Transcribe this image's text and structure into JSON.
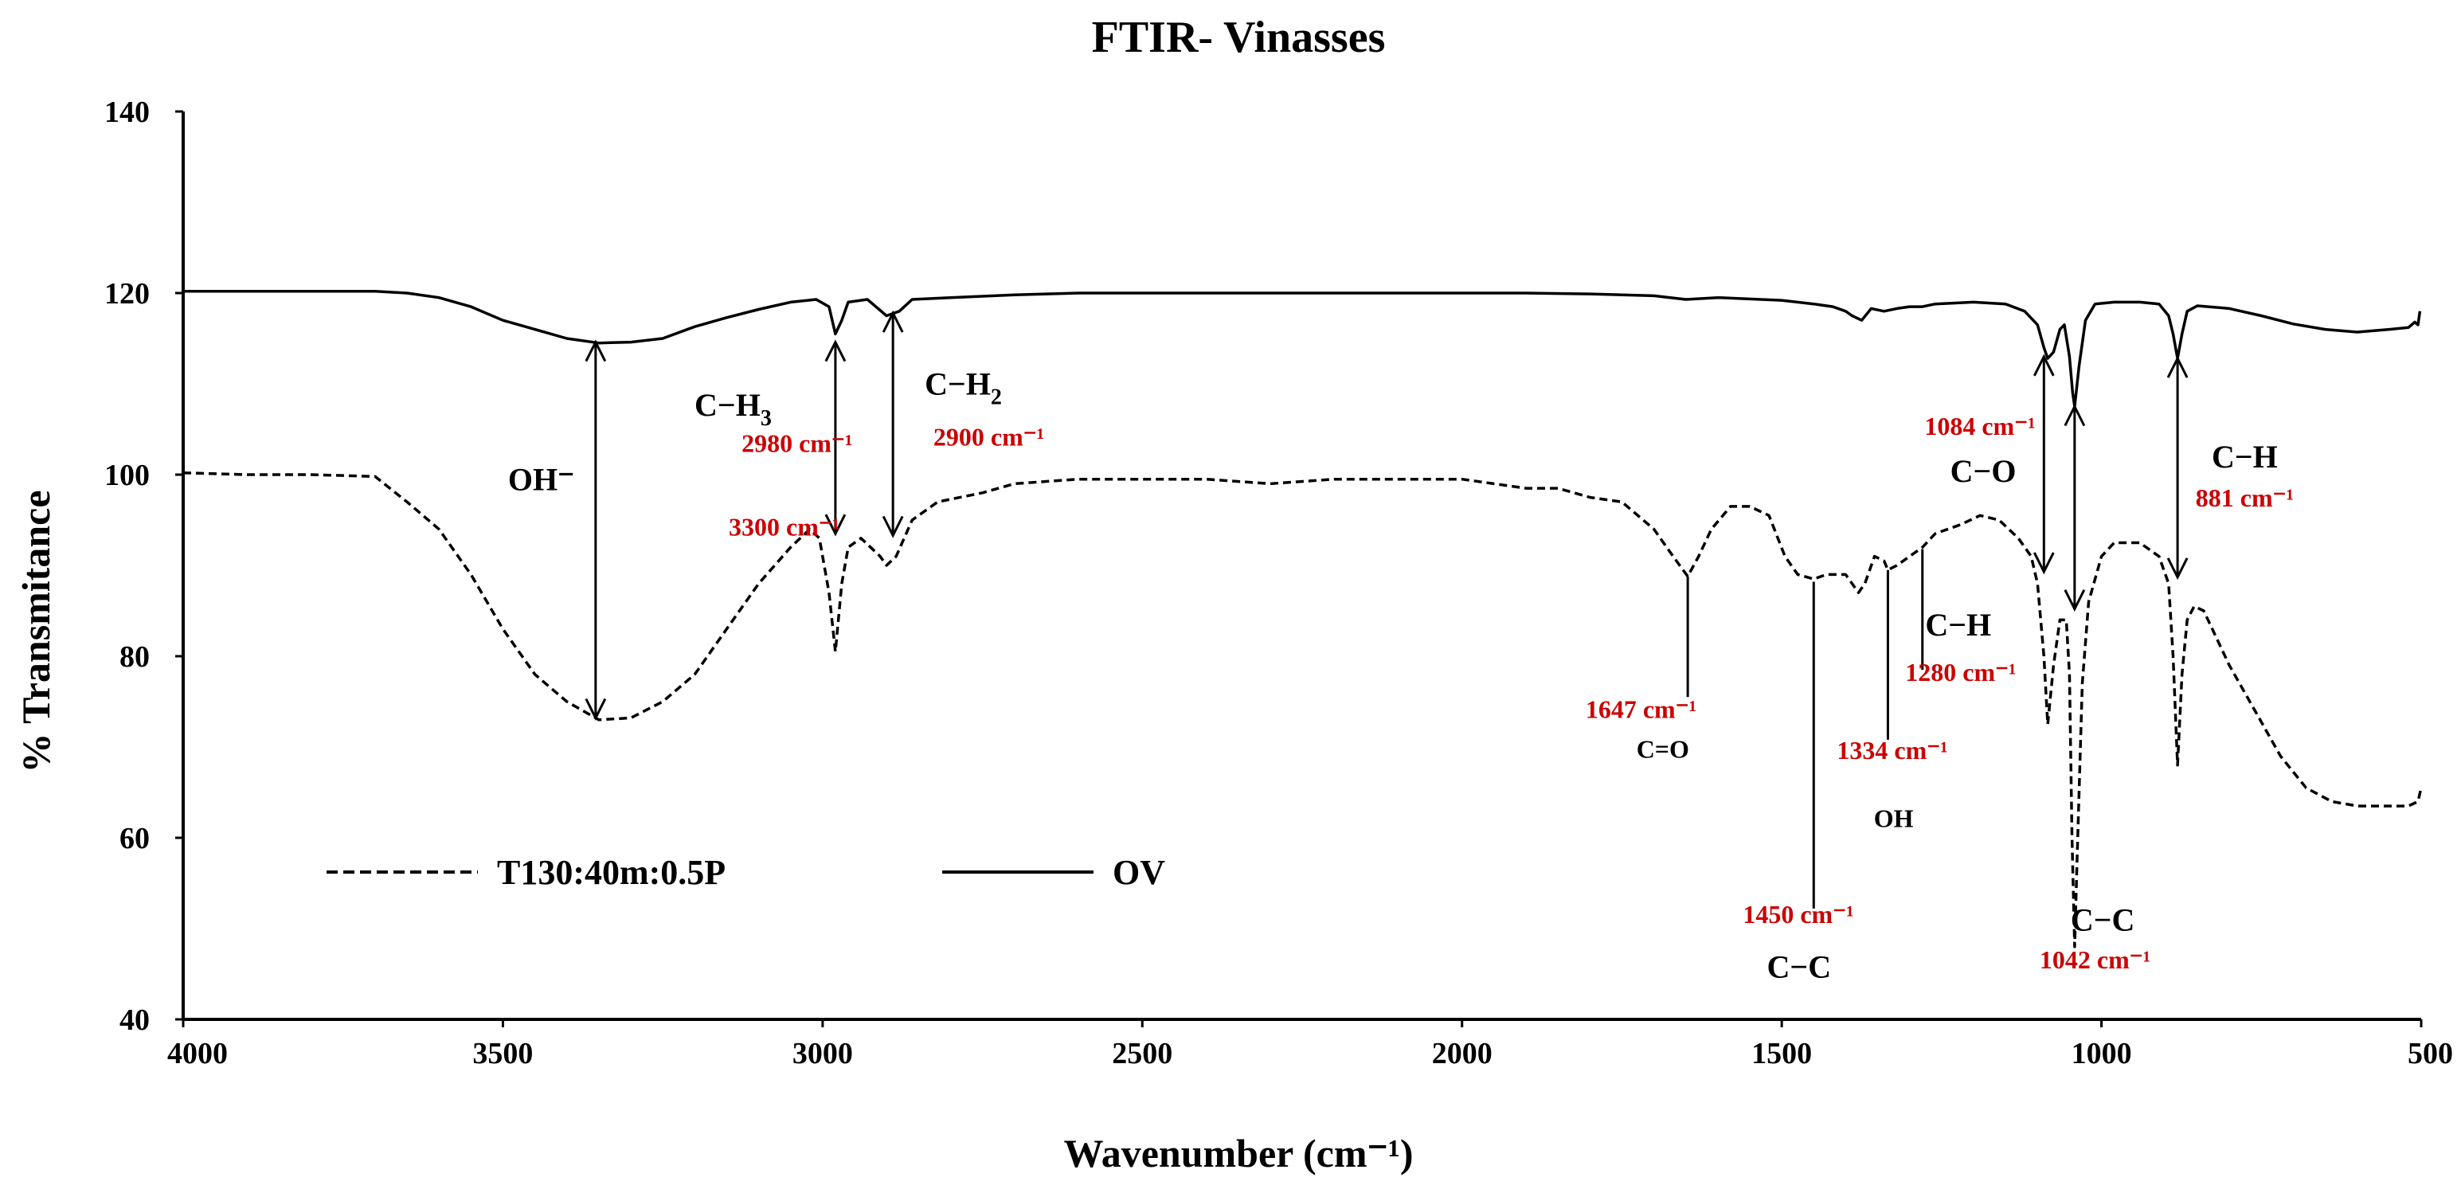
{
  "chart_data": {
    "type": "line",
    "title": "FTIR- Vinasses",
    "xlabel": "Wavenumber (cm⁻¹)",
    "ylabel": "% Transmitance",
    "xlim": [
      4000,
      500
    ],
    "ylim": [
      40,
      140
    ],
    "x_ticks": [
      "4000",
      "3500",
      "3000",
      "2500",
      "2000",
      "1500",
      "1000",
      "500"
    ],
    "y_ticks": [
      "40",
      "60",
      "80",
      "100",
      "120",
      "140"
    ],
    "x_reversed": true,
    "grid": false,
    "legend_position": "bottom-left",
    "series": [
      {
        "name": "T130:40m:0.5P",
        "style": "dashed",
        "color": "#000000",
        "points": [
          [
            4000,
            100.2
          ],
          [
            3900,
            100
          ],
          [
            3800,
            100
          ],
          [
            3700,
            99.8
          ],
          [
            3650,
            97
          ],
          [
            3600,
            94
          ],
          [
            3550,
            89
          ],
          [
            3500,
            83
          ],
          [
            3450,
            78
          ],
          [
            3400,
            75
          ],
          [
            3350,
            73
          ],
          [
            3300,
            73.2
          ],
          [
            3250,
            75
          ],
          [
            3200,
            78
          ],
          [
            3150,
            83
          ],
          [
            3100,
            88
          ],
          [
            3050,
            92
          ],
          [
            3020,
            94
          ],
          [
            3005,
            93
          ],
          [
            2990,
            87
          ],
          [
            2980,
            80.5
          ],
          [
            2970,
            88
          ],
          [
            2960,
            92
          ],
          [
            2940,
            93
          ],
          [
            2910,
            91
          ],
          [
            2900,
            90
          ],
          [
            2885,
            91
          ],
          [
            2860,
            95
          ],
          [
            2820,
            97
          ],
          [
            2750,
            98
          ],
          [
            2700,
            99
          ],
          [
            2600,
            99.5
          ],
          [
            2500,
            99.5
          ],
          [
            2400,
            99.5
          ],
          [
            2300,
            99
          ],
          [
            2200,
            99.5
          ],
          [
            2100,
            99.5
          ],
          [
            2000,
            99.5
          ],
          [
            1900,
            98.5
          ],
          [
            1850,
            98.5
          ],
          [
            1800,
            97.5
          ],
          [
            1750,
            97
          ],
          [
            1700,
            94
          ],
          [
            1670,
            91
          ],
          [
            1647,
            88.8
          ],
          [
            1630,
            91
          ],
          [
            1610,
            94
          ],
          [
            1580,
            96.5
          ],
          [
            1550,
            96.5
          ],
          [
            1520,
            95.5
          ],
          [
            1495,
            91
          ],
          [
            1475,
            89
          ],
          [
            1450,
            88.5
          ],
          [
            1430,
            89
          ],
          [
            1400,
            89
          ],
          [
            1380,
            87
          ],
          [
            1370,
            88
          ],
          [
            1355,
            91
          ],
          [
            1340,
            90.5
          ],
          [
            1334,
            89.5
          ],
          [
            1320,
            90
          ],
          [
            1300,
            91
          ],
          [
            1280,
            92
          ],
          [
            1260,
            93.5
          ],
          [
            1220,
            94.5
          ],
          [
            1190,
            95.5
          ],
          [
            1160,
            95
          ],
          [
            1130,
            93
          ],
          [
            1110,
            91
          ],
          [
            1100,
            88
          ],
          [
            1090,
            80
          ],
          [
            1084,
            72.5
          ],
          [
            1075,
            79
          ],
          [
            1065,
            84
          ],
          [
            1055,
            84
          ],
          [
            1050,
            78
          ],
          [
            1046,
            60
          ],
          [
            1042,
            48
          ],
          [
            1038,
            58
          ],
          [
            1030,
            77
          ],
          [
            1020,
            86
          ],
          [
            1000,
            91
          ],
          [
            980,
            92.5
          ],
          [
            940,
            92.5
          ],
          [
            910,
            91
          ],
          [
            895,
            88
          ],
          [
            888,
            80
          ],
          [
            881,
            68
          ],
          [
            874,
            78
          ],
          [
            866,
            84
          ],
          [
            855,
            85.5
          ],
          [
            840,
            85
          ],
          [
            800,
            79
          ],
          [
            760,
            74
          ],
          [
            720,
            69
          ],
          [
            680,
            65.5
          ],
          [
            640,
            64
          ],
          [
            600,
            63.5
          ],
          [
            550,
            63.5
          ],
          [
            520,
            63.5
          ],
          [
            505,
            64
          ],
          [
            500,
            65.5
          ]
        ]
      },
      {
        "name": "OV",
        "style": "solid",
        "color": "#000000",
        "points": [
          [
            4000,
            120.2
          ],
          [
            3900,
            120.2
          ],
          [
            3800,
            120.2
          ],
          [
            3700,
            120.2
          ],
          [
            3650,
            120
          ],
          [
            3600,
            119.5
          ],
          [
            3550,
            118.5
          ],
          [
            3500,
            117
          ],
          [
            3450,
            116
          ],
          [
            3400,
            115
          ],
          [
            3350,
            114.5
          ],
          [
            3300,
            114.6
          ],
          [
            3250,
            115
          ],
          [
            3200,
            116.3
          ],
          [
            3150,
            117.3
          ],
          [
            3100,
            118.2
          ],
          [
            3050,
            119
          ],
          [
            3010,
            119.3
          ],
          [
            2990,
            118.5
          ],
          [
            2980,
            115.5
          ],
          [
            2970,
            117
          ],
          [
            2960,
            119
          ],
          [
            2930,
            119.3
          ],
          [
            2900,
            117.5
          ],
          [
            2880,
            118
          ],
          [
            2860,
            119.3
          ],
          [
            2800,
            119.5
          ],
          [
            2700,
            119.8
          ],
          [
            2600,
            120
          ],
          [
            2500,
            120
          ],
          [
            2400,
            120
          ],
          [
            2300,
            120
          ],
          [
            2200,
            120
          ],
          [
            2100,
            120
          ],
          [
            2000,
            120
          ],
          [
            1900,
            120
          ],
          [
            1800,
            119.9
          ],
          [
            1700,
            119.7
          ],
          [
            1650,
            119.3
          ],
          [
            1600,
            119.5
          ],
          [
            1500,
            119.2
          ],
          [
            1450,
            118.8
          ],
          [
            1420,
            118.5
          ],
          [
            1400,
            118
          ],
          [
            1390,
            117.5
          ],
          [
            1375,
            117
          ],
          [
            1360,
            118.3
          ],
          [
            1340,
            118
          ],
          [
            1320,
            118.3
          ],
          [
            1300,
            118.5
          ],
          [
            1280,
            118.5
          ],
          [
            1260,
            118.8
          ],
          [
            1200,
            119
          ],
          [
            1150,
            118.8
          ],
          [
            1120,
            118
          ],
          [
            1100,
            116.5
          ],
          [
            1090,
            114
          ],
          [
            1084,
            112.8
          ],
          [
            1075,
            113.5
          ],
          [
            1065,
            116
          ],
          [
            1058,
            116.5
          ],
          [
            1050,
            113
          ],
          [
            1045,
            109
          ],
          [
            1042,
            107.5
          ],
          [
            1035,
            112
          ],
          [
            1025,
            117
          ],
          [
            1010,
            118.8
          ],
          [
            980,
            119
          ],
          [
            940,
            119
          ],
          [
            910,
            118.8
          ],
          [
            895,
            117.5
          ],
          [
            888,
            115.5
          ],
          [
            881,
            112.8
          ],
          [
            874,
            115.5
          ],
          [
            866,
            118
          ],
          [
            850,
            118.6
          ],
          [
            800,
            118.3
          ],
          [
            750,
            117.5
          ],
          [
            700,
            116.6
          ],
          [
            650,
            116
          ],
          [
            600,
            115.7
          ],
          [
            550,
            116
          ],
          [
            520,
            116.2
          ],
          [
            510,
            116.8
          ],
          [
            505,
            116.5
          ],
          [
            502,
            118
          ]
        ]
      }
    ],
    "annotations": [
      {
        "kind": "double-arrow",
        "x": 3355,
        "y1": 114.6,
        "y2": 73.2
      },
      {
        "kind": "double-arrow",
        "x": 2980,
        "y1": 114.6,
        "y2": 93.5
      },
      {
        "kind": "double-arrow",
        "x": 2890,
        "y1": 117.8,
        "y2": 93.3
      },
      {
        "kind": "double-arrow",
        "x": 1090,
        "y1": 113,
        "y2": 89.3
      },
      {
        "kind": "double-arrow",
        "x": 1042,
        "y1": 107.5,
        "y2": 85.2
      },
      {
        "kind": "double-arrow",
        "x": 881,
        "y1": 112.8,
        "y2": 88.7
      },
      {
        "kind": "line",
        "x": 1647,
        "y1": 88.8,
        "y2": 75.5
      },
      {
        "kind": "line",
        "x": 1450,
        "y1": 88.2,
        "y2": 52.2
      },
      {
        "kind": "line",
        "x": 1334,
        "y1": 89.5,
        "y2": 70.8
      },
      {
        "kind": "line",
        "x": 1280,
        "y1": 91.8,
        "y2": 78.5
      }
    ],
    "labels": [
      {
        "text": "OH⁻",
        "style": "black",
        "x": 3440,
        "y": 98.3
      },
      {
        "text": "3300 cm⁻¹",
        "style": "red",
        "x": 3060,
        "y": 93.3
      },
      {
        "text": "C−H",
        "style": "black",
        "sub": "3",
        "x": 3140,
        "y": 106.5
      },
      {
        "text": "2980 cm⁻¹",
        "style": "red",
        "x": 3040,
        "y": 102.5
      },
      {
        "text": "C−H",
        "style": "black",
        "sub": "2",
        "x": 2780,
        "y": 108.8
      },
      {
        "text": "2900  cm⁻¹",
        "style": "red",
        "x": 2740,
        "y": 103.2
      },
      {
        "text": "1084 cm⁻¹",
        "style": "red",
        "x": 1190,
        "y": 104.4
      },
      {
        "text": "C−O",
        "style": "black",
        "x": 1185,
        "y": 99.2
      },
      {
        "text": "C−H",
        "style": "black",
        "x": 776,
        "y": 100.8
      },
      {
        "text": "881 cm⁻¹",
        "style": "red",
        "x": 776,
        "y": 96.5
      },
      {
        "text": "C−H",
        "style": "black",
        "x": 1224,
        "y": 82.3
      },
      {
        "text": "1280 cm⁻¹",
        "style": "red",
        "x": 1220,
        "y": 77.3
      },
      {
        "text": "1647 cm⁻¹",
        "style": "red",
        "x": 1720,
        "y": 73.2
      },
      {
        "text": "C=O",
        "style": "black-small",
        "x": 1686,
        "y": 68.8
      },
      {
        "text": "1334 cm⁻¹",
        "style": "red",
        "x": 1327,
        "y": 68.7
      },
      {
        "text": "OH",
        "style": "black-small",
        "x": 1325,
        "y": 61.2
      },
      {
        "text": "1450 cm⁻¹",
        "style": "red",
        "x": 1474,
        "y": 50.6
      },
      {
        "text": "C−C",
        "style": "black",
        "x": 1473,
        "y": 44.6
      },
      {
        "text": "C−C",
        "style": "black",
        "x": 998,
        "y": 49.8
      },
      {
        "text": "1042 cm⁻¹",
        "style": "red",
        "x": 1010,
        "y": 45.6
      }
    ]
  }
}
